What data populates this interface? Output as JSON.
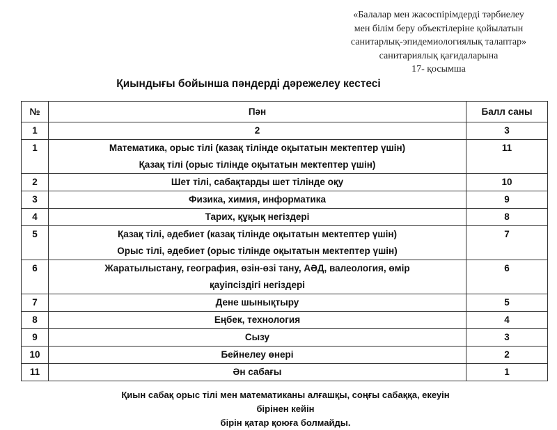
{
  "annex": {
    "lines": [
      "«Балалар мен жасөспірімдерді тәрбиелеу",
      "мен білім беру объектілеріне қойылатын",
      "санитарлық-эпидемиологиялық талаптар»",
      "санитариялық қағидаларына",
      "17- қосымша"
    ]
  },
  "title": "Қиындығы бойынша пәндерді дәрежелеу кестесі",
  "table": {
    "headers": [
      "№",
      "Пән",
      "Балл саны"
    ],
    "numbering_row": [
      "1",
      "2",
      "3"
    ],
    "rows": [
      {
        "no": "1",
        "subject": [
          "Математика, орыс тілі (казақ тілінде оқытатын мектептер үшін)",
          "Қазақ тілі (орыс тілінде оқытатын мектептер үшін)"
        ],
        "score": "11"
      },
      {
        "no": "2",
        "subject": [
          "Шет тілі, сабақтарды шет тілінде оқу"
        ],
        "score": "10"
      },
      {
        "no": "3",
        "subject": [
          "Физика, химия, информатика"
        ],
        "score": "9"
      },
      {
        "no": "4",
        "subject": [
          "Тарих, құқық негіздері"
        ],
        "score": "8"
      },
      {
        "no": "5",
        "subject": [
          "Қазақ тілі, әдебиет (казақ тілінде оқытатын мектептер үшін)",
          "Орыс тілі, әдебиет (орыс тілінде оқытатын мектептер үшін)"
        ],
        "score": "7"
      },
      {
        "no": "6",
        "subject": [
          "Жаратылыстану, география, өзін-өзі тану, АӘД, валеология, өмір",
          "қауіпсіздігі негіздері"
        ],
        "score": "6"
      },
      {
        "no": "7",
        "subject": [
          "Дене шынықтыру"
        ],
        "score": "5"
      },
      {
        "no": "8",
        "subject": [
          "Еңбек, технология"
        ],
        "score": "4"
      },
      {
        "no": "9",
        "subject": [
          "Сызу"
        ],
        "score": "3"
      },
      {
        "no": "10",
        "subject": [
          "Бейнелеу өнері"
        ],
        "score": "2"
      },
      {
        "no": "11",
        "subject": [
          "Ән сабағы"
        ],
        "score": "1"
      }
    ]
  },
  "note": {
    "lines": [
      "Қиын сабақ орыс тілі мен математиканы алғашқы, соңғы сабаққа, екеуін бірінен кейін",
      "бірін қатар қоюға болмайды."
    ]
  }
}
